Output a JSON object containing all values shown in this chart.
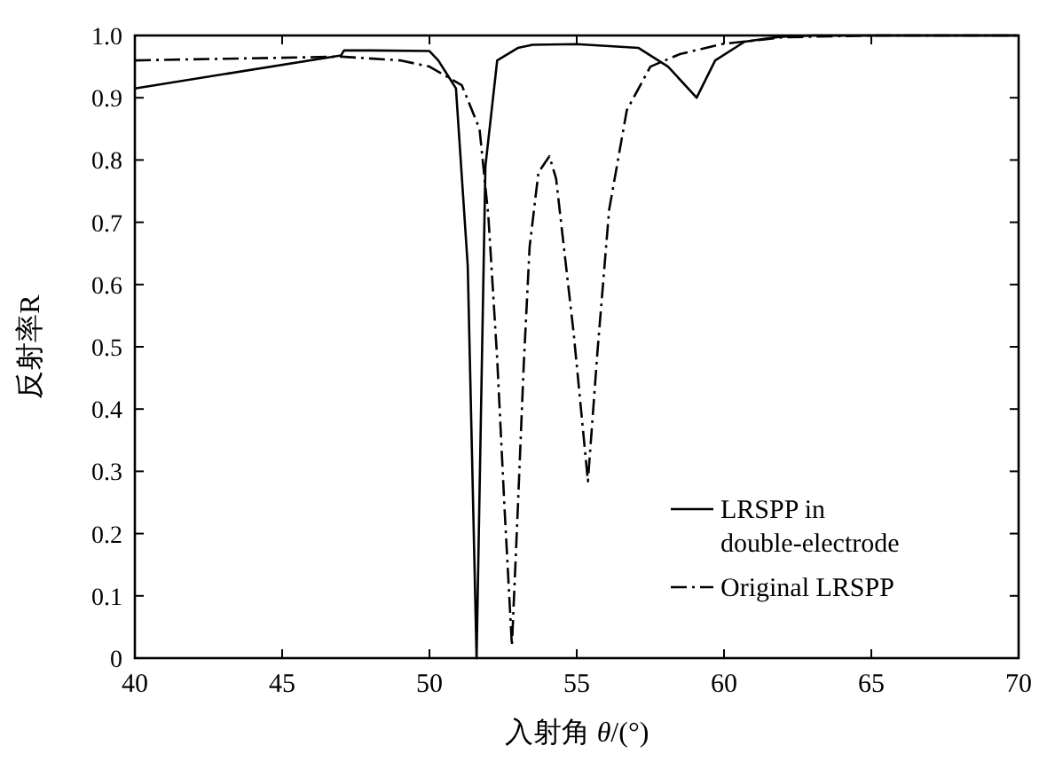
{
  "chart_data": {
    "type": "line",
    "xlabel": "入射角 *θ*/(°)",
    "ylabel": "反射率R",
    "xlim": [
      40,
      70
    ],
    "ylim": [
      0,
      1
    ],
    "xticks": [
      40,
      45,
      50,
      55,
      60,
      65,
      70
    ],
    "yticks": [
      0,
      0.1,
      0.2,
      0.3,
      0.4,
      0.5,
      0.6,
      0.7,
      0.8,
      0.9,
      {
        "value": 1,
        "label": "1.0"
      }
    ],
    "legend": "bottom right",
    "grid": false,
    "series": [
      {
        "name": "LRSPP in double-electrode",
        "color": "#000000",
        "line_style": "solid",
        "x": [
          40,
          47.0,
          47.1,
          48,
          50,
          50.3,
          50.9,
          51.3,
          51.6,
          51.9,
          52.3,
          53,
          53.5,
          55,
          57.1,
          58.1,
          59.07,
          59.7,
          60.7,
          61.9,
          63,
          70
        ],
        "values": [
          0.915,
          0.968,
          0.976,
          0.976,
          0.975,
          0.96,
          0.915,
          0.63,
          0.0,
          0.79,
          0.96,
          0.98,
          0.985,
          0.986,
          0.98,
          0.95,
          0.9,
          0.96,
          0.99,
          0.998,
          1.0,
          1.0
        ]
      },
      {
        "name": "Original LRSPP",
        "color": "#000000",
        "line_style": "dashdot",
        "x": [
          40,
          47,
          49,
          50,
          51.1,
          51.7,
          52.0,
          52.3,
          52.55,
          52.8,
          53.0,
          53.2,
          53.4,
          53.7,
          54.07,
          54.3,
          54.9,
          55.38,
          55.7,
          56.1,
          56.7,
          57.5,
          58.5,
          59.9,
          62,
          65,
          70
        ],
        "values": [
          0.96,
          0.966,
          0.96,
          0.95,
          0.92,
          0.85,
          0.71,
          0.48,
          0.24,
          0.02,
          0.24,
          0.47,
          0.66,
          0.78,
          0.806,
          0.77,
          0.52,
          0.284,
          0.49,
          0.72,
          0.88,
          0.95,
          0.97,
          0.986,
          0.997,
          1.0,
          1.0
        ]
      }
    ]
  }
}
